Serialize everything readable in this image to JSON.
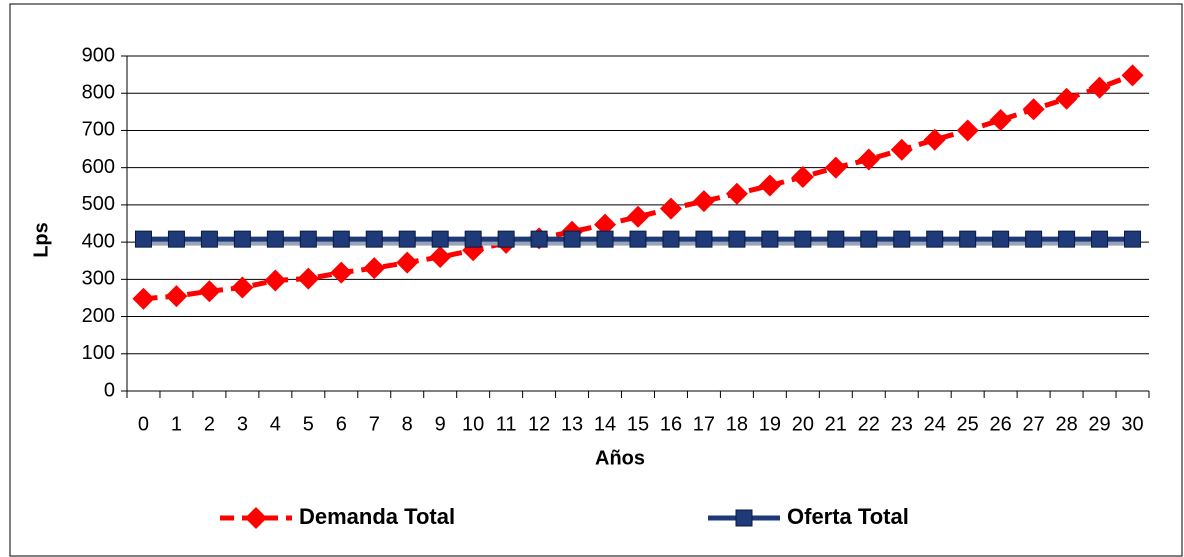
{
  "chart_data": {
    "type": "line",
    "x_label": "Años",
    "y_label": "Lps",
    "categories": [
      "0",
      "1",
      "2",
      "3",
      "4",
      "5",
      "6",
      "7",
      "8",
      "9",
      "10",
      "11",
      "12",
      "13",
      "14",
      "15",
      "16",
      "17",
      "18",
      "19",
      "20",
      "21",
      "22",
      "23",
      "24",
      "25",
      "26",
      "27",
      "28",
      "29",
      "30"
    ],
    "series": [
      {
        "name": "Demanda Total",
        "color": "#ff0000",
        "marker": "diamond",
        "dash": true,
        "values": [
          248,
          255,
          268,
          278,
          297,
          302,
          318,
          330,
          345,
          360,
          378,
          398,
          410,
          428,
          447,
          468,
          490,
          510,
          530,
          552,
          575,
          600,
          622,
          648,
          675,
          700,
          728,
          757,
          785,
          815,
          848
        ]
      },
      {
        "name": "Oferta Total",
        "color": "#1f3a78",
        "marker": "square",
        "dash": false,
        "values": [
          408,
          408,
          408,
          408,
          408,
          408,
          408,
          408,
          408,
          408,
          408,
          408,
          408,
          408,
          408,
          408,
          408,
          408,
          408,
          408,
          408,
          408,
          408,
          408,
          408,
          408,
          408,
          408,
          408,
          408,
          408
        ]
      }
    ],
    "ylim": [
      0,
      900
    ],
    "yticks": [
      0,
      100,
      200,
      300,
      400,
      500,
      600,
      700,
      800,
      900
    ],
    "grid": true,
    "legend": "bottom"
  }
}
